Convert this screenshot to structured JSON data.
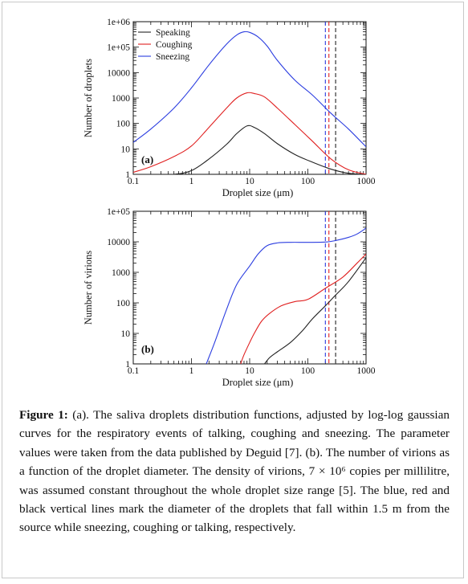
{
  "chart_data": [
    {
      "type": "line",
      "panel_label": "(a)",
      "xlabel": "Droplet size (μm)",
      "ylabel": "Number of droplets",
      "x_scale": "log",
      "y_scale": "log",
      "xlim": [
        0.1,
        1000
      ],
      "ylim": [
        1,
        1000000
      ],
      "x_ticks": [
        "0.1",
        "1",
        "10",
        "100",
        "1000"
      ],
      "y_ticks": [
        "1",
        "10",
        "100",
        "1000",
        "10000",
        "1e+05",
        "1e+06"
      ],
      "legend": "top-left",
      "series": [
        {
          "name": "Speaking",
          "color": "#222222",
          "x": [
            0.1,
            0.2,
            0.5,
            1,
            2,
            4,
            6,
            9,
            12,
            18,
            30,
            60,
            120,
            250,
            500,
            1000
          ],
          "y": [
            1,
            1,
            1,
            1.4,
            4,
            15,
            40,
            80,
            70,
            40,
            16,
            6,
            3,
            1.6,
            1.1,
            1
          ]
        },
        {
          "name": "Coughing",
          "color": "#e02020",
          "x": [
            0.1,
            0.2,
            0.5,
            1,
            2,
            4,
            6,
            9,
            12,
            18,
            30,
            60,
            120,
            250,
            500,
            1000
          ],
          "y": [
            1.2,
            2,
            5,
            13,
            70,
            400,
            1000,
            1600,
            1500,
            1100,
            400,
            90,
            20,
            4,
            1.5,
            1
          ]
        },
        {
          "name": "Sneezing",
          "color": "#2b3de0",
          "x": [
            0.1,
            0.2,
            0.5,
            1,
            2,
            4,
            6,
            8,
            10,
            14,
            20,
            30,
            60,
            120,
            250,
            500,
            1000
          ],
          "y": [
            18,
            60,
            400,
            2500,
            20000,
            130000,
            300000,
            400000,
            380000,
            250000,
            110000,
            30000,
            5000,
            1300,
            250,
            60,
            12
          ]
        }
      ],
      "vlines": [
        {
          "x": 200,
          "color": "#2b3de0"
        },
        {
          "x": 230,
          "color": "#e02020"
        },
        {
          "x": 300,
          "color": "#222222"
        }
      ]
    },
    {
      "type": "line",
      "panel_label": "(b)",
      "xlabel": "Droplet size (μm)",
      "ylabel": "Number of virions",
      "x_scale": "log",
      "y_scale": "log",
      "xlim": [
        0.1,
        1000
      ],
      "ylim": [
        1,
        100000
      ],
      "x_ticks": [
        "0.1",
        "1",
        "10",
        "100",
        "1000"
      ],
      "y_ticks": [
        "1",
        "10",
        "100",
        "1000",
        "10000",
        "1e+05"
      ],
      "series": [
        {
          "name": "Speaking",
          "color": "#222222",
          "x": [
            18,
            22,
            30,
            50,
            80,
            120,
            200,
            300,
            500,
            1000
          ],
          "y": [
            1,
            1.6,
            2.5,
            5,
            12,
            30,
            80,
            180,
            500,
            3000
          ]
        },
        {
          "name": "Coughing",
          "color": "#e02020",
          "x": [
            7,
            8,
            10,
            12,
            16,
            22,
            35,
            60,
            100,
            200,
            400,
            700,
            1000
          ],
          "y": [
            1,
            2,
            5,
            10,
            25,
            45,
            80,
            110,
            130,
            300,
            700,
            2000,
            4000
          ]
        },
        {
          "name": "Sneezing",
          "color": "#2b3de0",
          "x": [
            1.8,
            2.5,
            4,
            6,
            10,
            14,
            20,
            30,
            50,
            100,
            200,
            300,
            500,
            700,
            1000
          ],
          "y": [
            1,
            5,
            60,
            400,
            1600,
            4000,
            7500,
            9200,
            9600,
            9600,
            9800,
            11000,
            14000,
            18000,
            28000
          ]
        }
      ],
      "vlines": [
        {
          "x": 200,
          "color": "#2b3de0"
        },
        {
          "x": 230,
          "color": "#e02020"
        },
        {
          "x": 300,
          "color": "#222222"
        }
      ]
    }
  ],
  "caption": {
    "label": "Figure 1:",
    "text": " (a). The saliva droplets distribution functions, adjusted by log-log gaussian curves for the respiratory events of talking, coughing and sneezing. The parameter values were taken from the data published by Deguid [7]. (b). The number of virions as a function of the droplet diameter. The density of virions, 7 × 10⁶ copies per millilitre, was assumed constant throughout the whole droplet size range [5]. The blue, red and black vertical lines mark the diameter of the droplets that fall within 1.5 m from the source while sneezing, coughing or talking, respectively."
  }
}
